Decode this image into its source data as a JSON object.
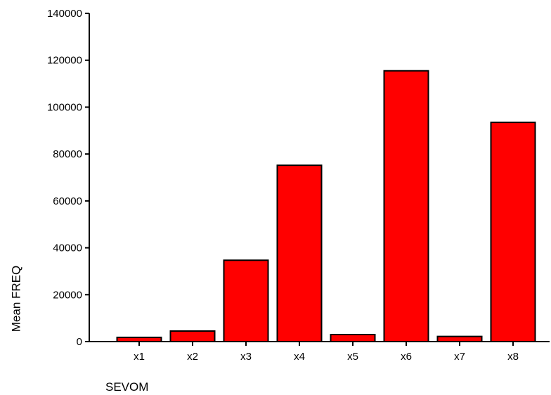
{
  "chart_data": {
    "type": "bar",
    "title": "",
    "xlabel": "SEVOM",
    "ylabel": "Mean FREQ",
    "categories": [
      "x1",
      "x2",
      "x3",
      "x4",
      "x5",
      "x6",
      "x7",
      "x8"
    ],
    "values": [
      1800,
      4500,
      34700,
      75200,
      3000,
      115500,
      2200,
      93500
    ],
    "ylim": [
      0,
      140000
    ],
    "yticks": [
      0,
      20000,
      40000,
      60000,
      80000,
      100000,
      120000,
      140000
    ],
    "bar_color": "#ff0000",
    "bar_edge_color": "#000000",
    "grid": false,
    "legend": "none"
  }
}
